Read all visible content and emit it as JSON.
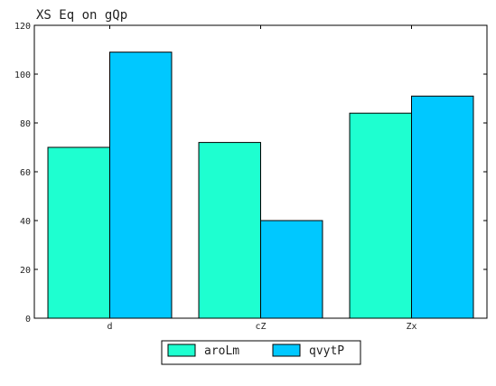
{
  "chart_data": {
    "type": "bar",
    "title": "XS Eq on gQp",
    "xlabel": "",
    "ylabel": "",
    "categories": [
      "d",
      "cZ",
      "Zx"
    ],
    "series": [
      {
        "name": "aroLm",
        "values": [
          70,
          72,
          84
        ],
        "color": "#1effd0"
      },
      {
        "name": "qvytP",
        "values": [
          109,
          40,
          91
        ],
        "color": "#00c8ff"
      }
    ],
    "ylim": [
      0,
      120
    ],
    "yticks": [
      0,
      20,
      40,
      60,
      80,
      100,
      120
    ],
    "grid": false,
    "legend_position": "bottom-center"
  }
}
